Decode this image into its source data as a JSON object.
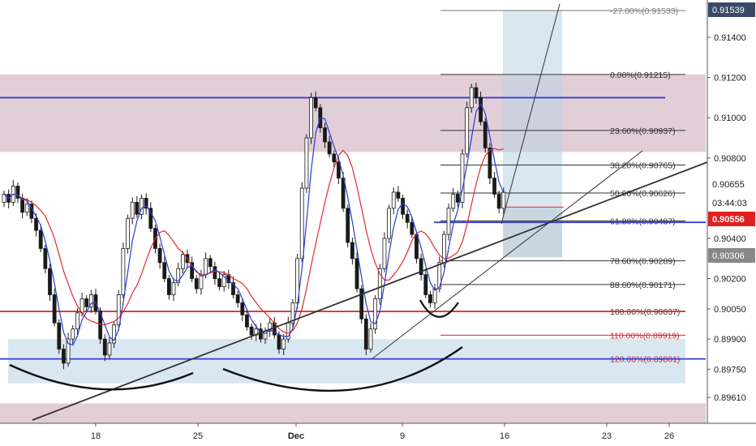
{
  "chart_data": {
    "type": "candlestick",
    "instrument_axis": "price",
    "y_axis_ticks": [
      "0.91400",
      "0.91200",
      "0.91000",
      "0.90800",
      "0.90400",
      "0.90200",
      "0.90050",
      "0.89900",
      "0.89750",
      "0.89610"
    ],
    "x_axis_ticks": [
      {
        "label": "18",
        "bold": false
      },
      {
        "label": "25",
        "bold": false
      },
      {
        "label": "Dec",
        "bold": true
      },
      {
        "label": "9",
        "bold": false
      },
      {
        "label": "16",
        "bold": false
      },
      {
        "label": "23",
        "bold": false
      },
      {
        "label": "26",
        "bold": false
      }
    ],
    "price_tags": [
      {
        "label": "0.91539",
        "style": "dark"
      },
      {
        "label": "0.90655",
        "style": "plain"
      },
      {
        "label": "03:44:03",
        "style": "plain"
      },
      {
        "label": "0.90556",
        "style": "red"
      },
      {
        "label": "0.90306",
        "style": "grey"
      }
    ],
    "fib_levels": [
      {
        "label": "-27.00%(0.91533)",
        "price": 0.91533,
        "color": "#7a7a7a"
      },
      {
        "label": "0.00%(0.91215)",
        "price": 0.91215,
        "color": "#333333"
      },
      {
        "label": "23.60%(0.90937)",
        "price": 0.90937,
        "color": "#333333"
      },
      {
        "label": "38.20%(0.90765)",
        "price": 0.90765,
        "color": "#333333"
      },
      {
        "label": "50.00%(0.90626)",
        "price": 0.90626,
        "color": "#333333"
      },
      {
        "label": "61.80%(0.90487)",
        "price": 0.90487,
        "color": "#333333"
      },
      {
        "label": "78.60%(0.90289)",
        "price": 0.90289,
        "color": "#333333"
      },
      {
        "label": "88.60%(0.90171)",
        "price": 0.90171,
        "color": "#333333"
      },
      {
        "label": "100.00%(0.90037)",
        "price": 0.90037,
        "color": "#333333"
      },
      {
        "label": "110.00%(0.89919)",
        "price": 0.89919,
        "color": "#d12a2a"
      },
      {
        "label": "120.00%(0.89801)",
        "price": 0.89801,
        "color": "#d12a2a"
      }
    ],
    "horizontal_levels": [
      {
        "price": 0.911,
        "color": "#3b3bd6"
      },
      {
        "price": 0.9048,
        "color": "#3b3bd6"
      },
      {
        "price": 0.90037,
        "color": "#e03030"
      },
      {
        "price": 0.89801,
        "color": "#3b3bd6"
      }
    ],
    "zones": [
      {
        "from": 0.9083,
        "to": 0.91215,
        "color": "#c9a5b6"
      },
      {
        "from": 0.8968,
        "to": 0.899,
        "color": "#b9d3e6"
      },
      {
        "from": 0.8948,
        "to": 0.8958,
        "color": "#c9a5b6"
      }
    ],
    "closes": [
      0.9062,
      0.9058,
      0.9066,
      0.906,
      0.9053,
      0.9057,
      0.905,
      0.9044,
      0.9035,
      0.9025,
      0.9012,
      0.8998,
      0.8985,
      0.8978,
      0.899,
      0.8995,
      0.9003,
      0.901,
      0.9006,
      0.9012,
      0.9004,
      0.899,
      0.8982,
      0.8988,
      0.8997,
      0.9012,
      0.9035,
      0.905,
      0.9058,
      0.9052,
      0.906,
      0.9055,
      0.9045,
      0.9035,
      0.9028,
      0.902,
      0.9012,
      0.9018,
      0.9025,
      0.9032,
      0.9028,
      0.902,
      0.9015,
      0.9022,
      0.903,
      0.9026,
      0.902,
      0.9016,
      0.9022,
      0.9018,
      0.9012,
      0.9008,
      0.9002,
      0.8996,
      0.8992,
      0.8995,
      0.899,
      0.8994,
      0.8998,
      0.8992,
      0.8985,
      0.899,
      0.8998,
      0.9008,
      0.903,
      0.9065,
      0.909,
      0.911,
      0.9105,
      0.9095,
      0.9088,
      0.9082,
      0.9078,
      0.907,
      0.9055,
      0.9038,
      0.903,
      0.9015,
      0.9,
      0.8985,
      0.8995,
      0.901,
      0.9025,
      0.904,
      0.9055,
      0.9063,
      0.906,
      0.9052,
      0.9048,
      0.9042,
      0.903,
      0.9022,
      0.9012,
      0.9008,
      0.9015,
      0.9028,
      0.9042,
      0.9055,
      0.9062,
      0.9058,
      0.9082,
      0.9105,
      0.9115,
      0.911,
      0.9098,
      0.9085,
      0.907,
      0.9062,
      0.9055,
      0.9063
    ]
  }
}
